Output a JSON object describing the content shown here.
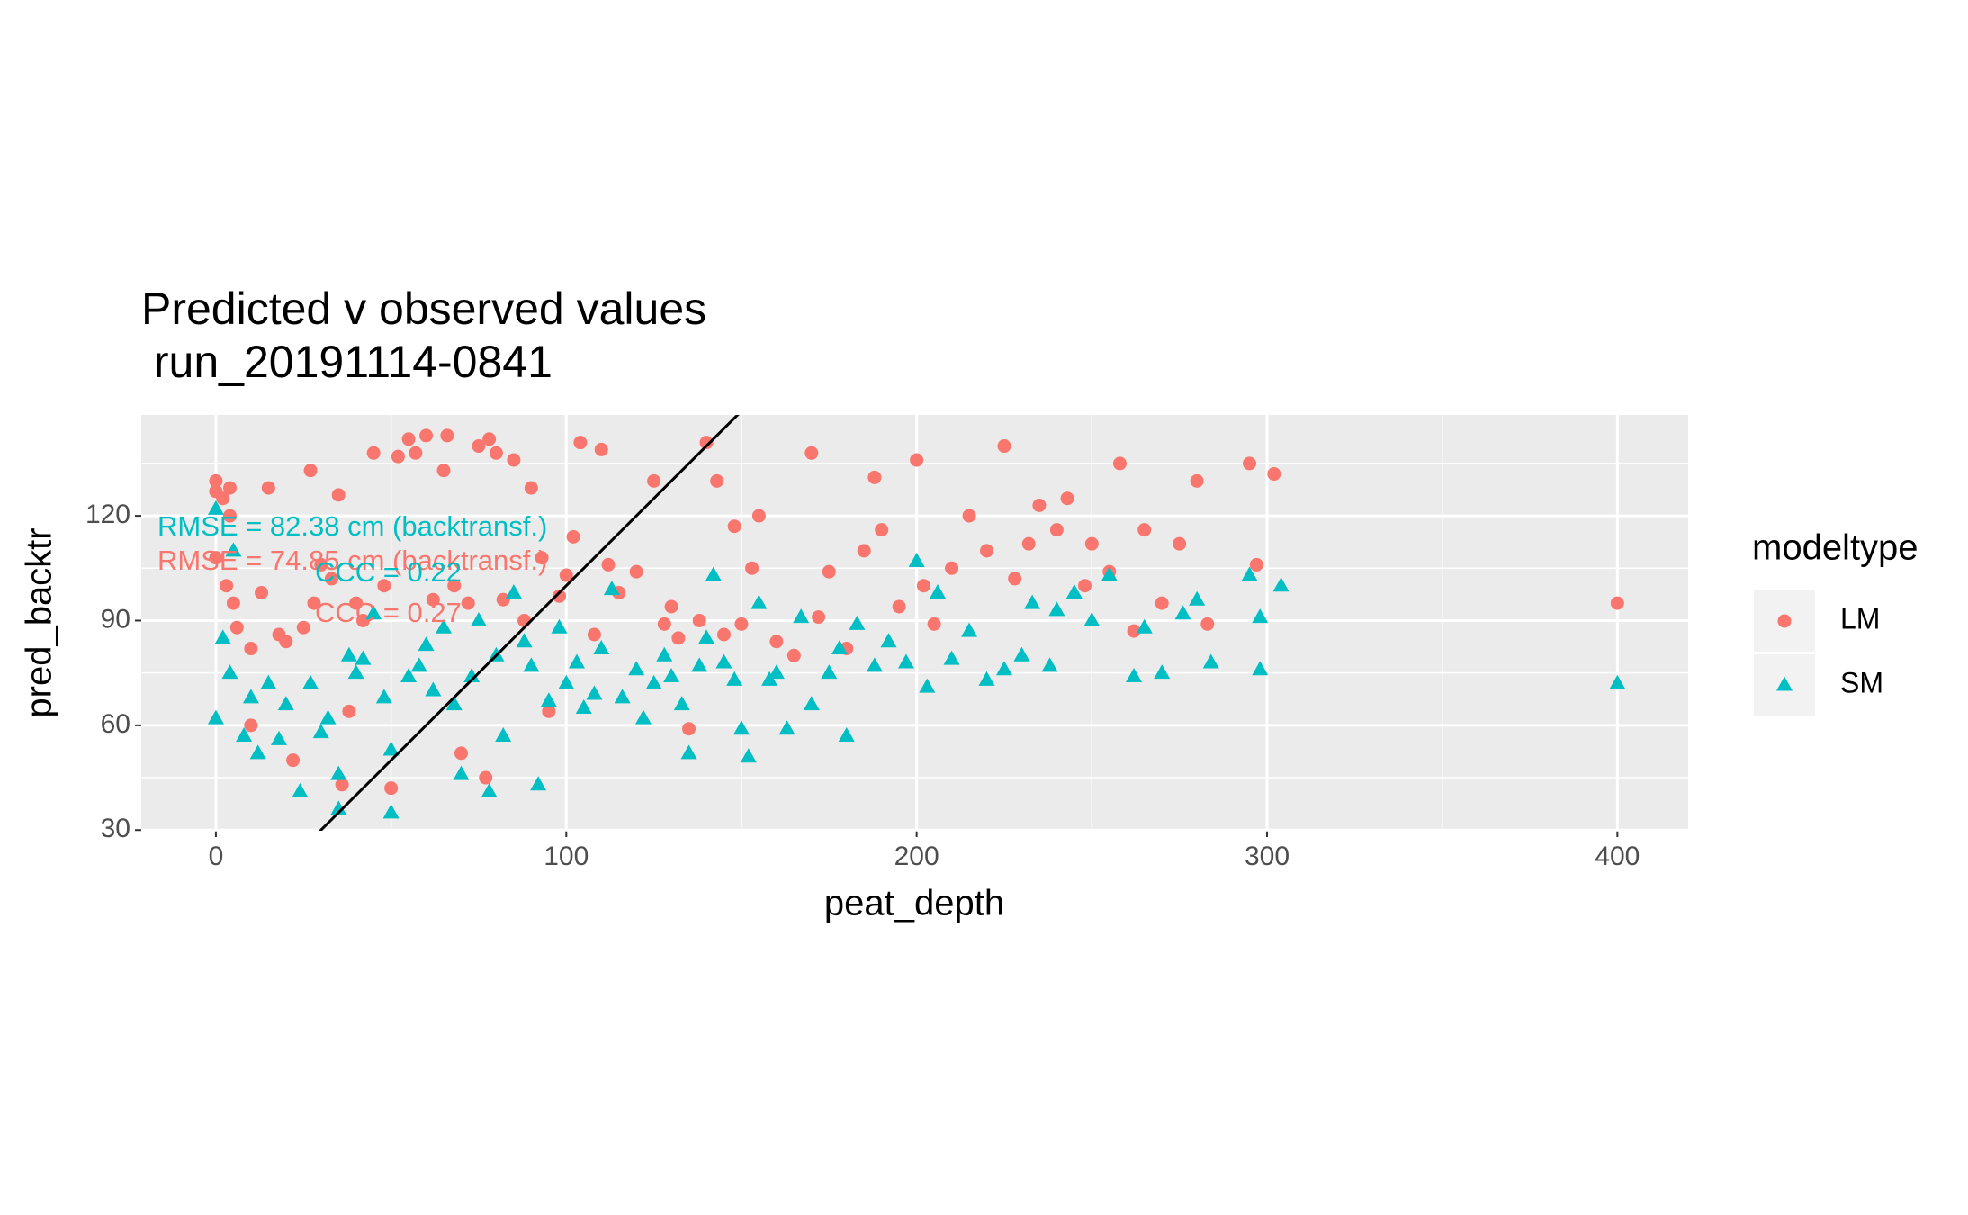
{
  "chart_data": {
    "type": "scatter",
    "title": "Predicted v observed values",
    "subtitle": " run_20191114-0841",
    "x_label": "peat_depth",
    "y_label": "pred_backtr",
    "legend_title": "modeltype",
    "xlim": [
      -21.3,
      420.2
    ],
    "ylim": [
      29.8,
      148.9
    ],
    "xticks": [
      0,
      100,
      200,
      300,
      400
    ],
    "yticks": [
      30,
      60,
      90,
      120
    ],
    "xminor": [
      50,
      150,
      250,
      350
    ],
    "yminor": [
      45,
      75,
      105,
      135
    ],
    "grid": true,
    "background": "#ebebeb",
    "reference_line": {
      "slope": 1,
      "intercept": 0,
      "color": "#000000"
    },
    "annotations": [
      {
        "text": "RMSE = 82.38 cm (backtransf.)",
        "color": "#00BFC4"
      },
      {
        "text": "RMSE = 74.85 cm (backtransf.)",
        "color": "#F8766D"
      },
      {
        "text": "CCC = 0.22",
        "color": "#00BFC4"
      },
      {
        "text": "CCC = 0.27",
        "color": "#F8766D"
      }
    ],
    "series": [
      {
        "name": "LM",
        "color": "#F8766D",
        "shape": "circle",
        "x": [
          0,
          0,
          2,
          4,
          0,
          3,
          5,
          6,
          4,
          10,
          10,
          13,
          15,
          18,
          20,
          22,
          25,
          27,
          28,
          30,
          33,
          35,
          36,
          38,
          40,
          42,
          45,
          48,
          50,
          52,
          55,
          57,
          60,
          62,
          65,
          66,
          68,
          70,
          72,
          75,
          77,
          78,
          80,
          82,
          85,
          88,
          90,
          93,
          95,
          98,
          100,
          102,
          104,
          108,
          110,
          112,
          115,
          120,
          125,
          128,
          130,
          132,
          135,
          138,
          140,
          143,
          145,
          148,
          150,
          153,
          155,
          160,
          165,
          170,
          172,
          175,
          180,
          185,
          188,
          190,
          195,
          200,
          202,
          205,
          210,
          215,
          220,
          225,
          228,
          232,
          235,
          240,
          243,
          248,
          250,
          255,
          258,
          262,
          265,
          270,
          275,
          280,
          283,
          295,
          297,
          302,
          400
        ],
        "values": [
          130,
          127,
          125,
          128,
          108,
          100,
          95,
          88,
          120,
          82,
          60,
          98,
          128,
          86,
          84,
          50,
          88,
          133,
          95,
          106,
          102,
          126,
          43,
          64,
          95,
          90,
          138,
          100,
          42,
          137,
          142,
          138,
          143,
          96,
          133,
          143,
          100,
          52,
          95,
          140,
          45,
          142,
          138,
          96,
          136,
          90,
          128,
          108,
          64,
          97,
          103,
          114,
          141,
          86,
          139,
          106,
          98,
          104,
          130,
          89,
          94,
          85,
          59,
          90,
          141,
          130,
          86,
          117,
          89,
          105,
          120,
          84,
          80,
          138,
          91,
          104,
          82,
          110,
          131,
          116,
          94,
          136,
          100,
          89,
          105,
          120,
          110,
          140,
          102,
          112,
          123,
          116,
          125,
          100,
          112,
          104,
          135,
          87,
          116,
          95,
          112,
          130,
          89,
          135,
          106,
          132,
          95
        ]
      },
      {
        "name": "SM",
        "color": "#00BFC4",
        "shape": "triangle",
        "x": [
          0,
          0,
          2,
          4,
          5,
          8,
          10,
          12,
          15,
          18,
          20,
          24,
          27,
          30,
          32,
          35,
          35,
          38,
          40,
          42,
          45,
          48,
          50,
          50,
          55,
          58,
          60,
          62,
          65,
          68,
          70,
          73,
          75,
          78,
          80,
          82,
          85,
          88,
          90,
          92,
          95,
          98,
          100,
          103,
          105,
          108,
          110,
          113,
          116,
          120,
          122,
          125,
          128,
          130,
          133,
          135,
          138,
          140,
          142,
          145,
          148,
          150,
          152,
          155,
          158,
          160,
          163,
          167,
          170,
          175,
          178,
          180,
          183,
          188,
          192,
          197,
          200,
          203,
          206,
          210,
          215,
          220,
          225,
          230,
          233,
          238,
          240,
          245,
          250,
          255,
          262,
          265,
          270,
          276,
          280,
          284,
          295,
          298,
          298,
          304,
          400
        ],
        "values": [
          62,
          122,
          85,
          75,
          110,
          57,
          68,
          52,
          72,
          56,
          66,
          41,
          72,
          58,
          62,
          36,
          46,
          80,
          75,
          79,
          92,
          68,
          53,
          35,
          74,
          77,
          83,
          70,
          88,
          66,
          46,
          74,
          90,
          41,
          80,
          57,
          98,
          84,
          77,
          43,
          67,
          88,
          72,
          78,
          65,
          69,
          82,
          99,
          68,
          76,
          62,
          72,
          80,
          74,
          66,
          52,
          77,
          85,
          103,
          78,
          73,
          59,
          51,
          95,
          73,
          75,
          59,
          91,
          66,
          75,
          82,
          57,
          89,
          77,
          84,
          78,
          107,
          71,
          98,
          79,
          87,
          73,
          76,
          80,
          95,
          77,
          93,
          98,
          90,
          103,
          74,
          88,
          75,
          92,
          96,
          78,
          103,
          76,
          91,
          100,
          72
        ]
      }
    ]
  }
}
